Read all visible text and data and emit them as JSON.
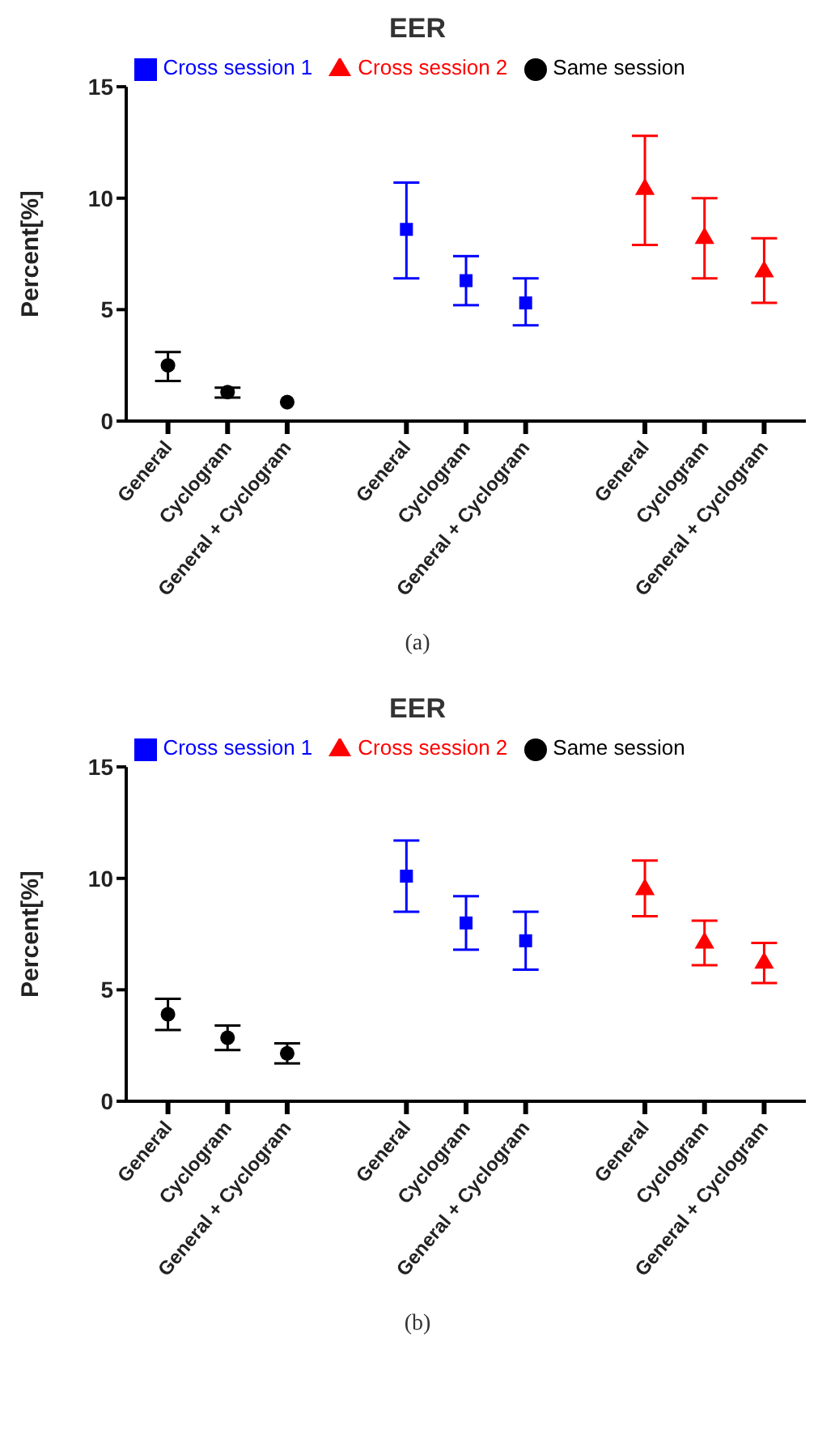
{
  "chart_data": [
    {
      "type": "scatter",
      "title": "EER",
      "ylabel": "Percent[%]",
      "annotations": [
        "(a)"
      ],
      "categories": [
        "General",
        "Cyclogram",
        "General + Cyclogram",
        null,
        "General",
        "Cyclogram",
        "General + Cyclogram",
        null,
        "General",
        "Cyclogram",
        "General + Cyclogram"
      ],
      "series": [
        {
          "name": "Same session",
          "color": "#000000",
          "marker": "circle",
          "values": [
            2.5,
            1.3,
            0.85,
            null,
            null,
            null,
            null,
            null,
            null,
            null,
            null
          ],
          "errors": [
            [
              1.8,
              3.1
            ],
            [
              1.05,
              1.5
            ],
            null,
            null,
            null,
            null,
            null,
            null,
            null,
            null,
            null
          ]
        },
        {
          "name": "Cross session 1",
          "color": "#0000ff",
          "marker": "square",
          "values": [
            null,
            null,
            null,
            null,
            8.6,
            6.3,
            5.3,
            null,
            null,
            null,
            null
          ],
          "errors": [
            null,
            null,
            null,
            null,
            [
              6.4,
              10.7
            ],
            [
              5.2,
              7.4
            ],
            [
              4.3,
              6.4
            ],
            null,
            null,
            null,
            null
          ]
        },
        {
          "name": "Cross session 2",
          "color": "#ff0000",
          "marker": "triangle",
          "values": [
            null,
            null,
            null,
            null,
            null,
            null,
            null,
            null,
            10.4,
            8.2,
            6.7
          ],
          "errors": [
            null,
            null,
            null,
            null,
            null,
            null,
            null,
            null,
            [
              7.9,
              12.8
            ],
            [
              6.4,
              10.0
            ],
            [
              5.3,
              8.2
            ]
          ]
        }
      ],
      "ylim": [
        0,
        15
      ],
      "yticks": [
        0,
        5,
        10,
        15
      ],
      "grid": false,
      "legend": "top"
    },
    {
      "type": "scatter",
      "title": "EER",
      "ylabel": "Percent[%]",
      "annotations": [
        "(b)"
      ],
      "categories": [
        "General",
        "Cyclogram",
        "General + Cyclogram",
        null,
        "General",
        "Cyclogram",
        "General + Cyclogram",
        null,
        "General",
        "Cyclogram",
        "General + Cyclogram"
      ],
      "series": [
        {
          "name": "Same session",
          "color": "#000000",
          "marker": "circle",
          "values": [
            3.9,
            2.85,
            2.15,
            null,
            null,
            null,
            null,
            null,
            null,
            null,
            null
          ],
          "errors": [
            [
              3.2,
              4.6
            ],
            [
              2.3,
              3.4
            ],
            [
              1.7,
              2.6
            ],
            null,
            null,
            null,
            null,
            null,
            null,
            null,
            null
          ]
        },
        {
          "name": "Cross session 1",
          "color": "#0000ff",
          "marker": "square",
          "values": [
            null,
            null,
            null,
            null,
            10.1,
            8.0,
            7.2,
            null,
            null,
            null,
            null
          ],
          "errors": [
            null,
            null,
            null,
            null,
            [
              8.5,
              11.7
            ],
            [
              6.8,
              9.2
            ],
            [
              5.9,
              8.5
            ],
            null,
            null,
            null,
            null
          ]
        },
        {
          "name": "Cross session 2",
          "color": "#ff0000",
          "marker": "triangle",
          "values": [
            null,
            null,
            null,
            null,
            null,
            null,
            null,
            null,
            9.5,
            7.1,
            6.2
          ],
          "errors": [
            null,
            null,
            null,
            null,
            null,
            null,
            null,
            null,
            [
              8.3,
              10.8
            ],
            [
              6.1,
              8.1
            ],
            [
              5.3,
              7.1
            ]
          ]
        }
      ],
      "ylim": [
        0,
        15
      ],
      "yticks": [
        0,
        5,
        10,
        15
      ],
      "grid": false,
      "legend": "top"
    }
  ]
}
